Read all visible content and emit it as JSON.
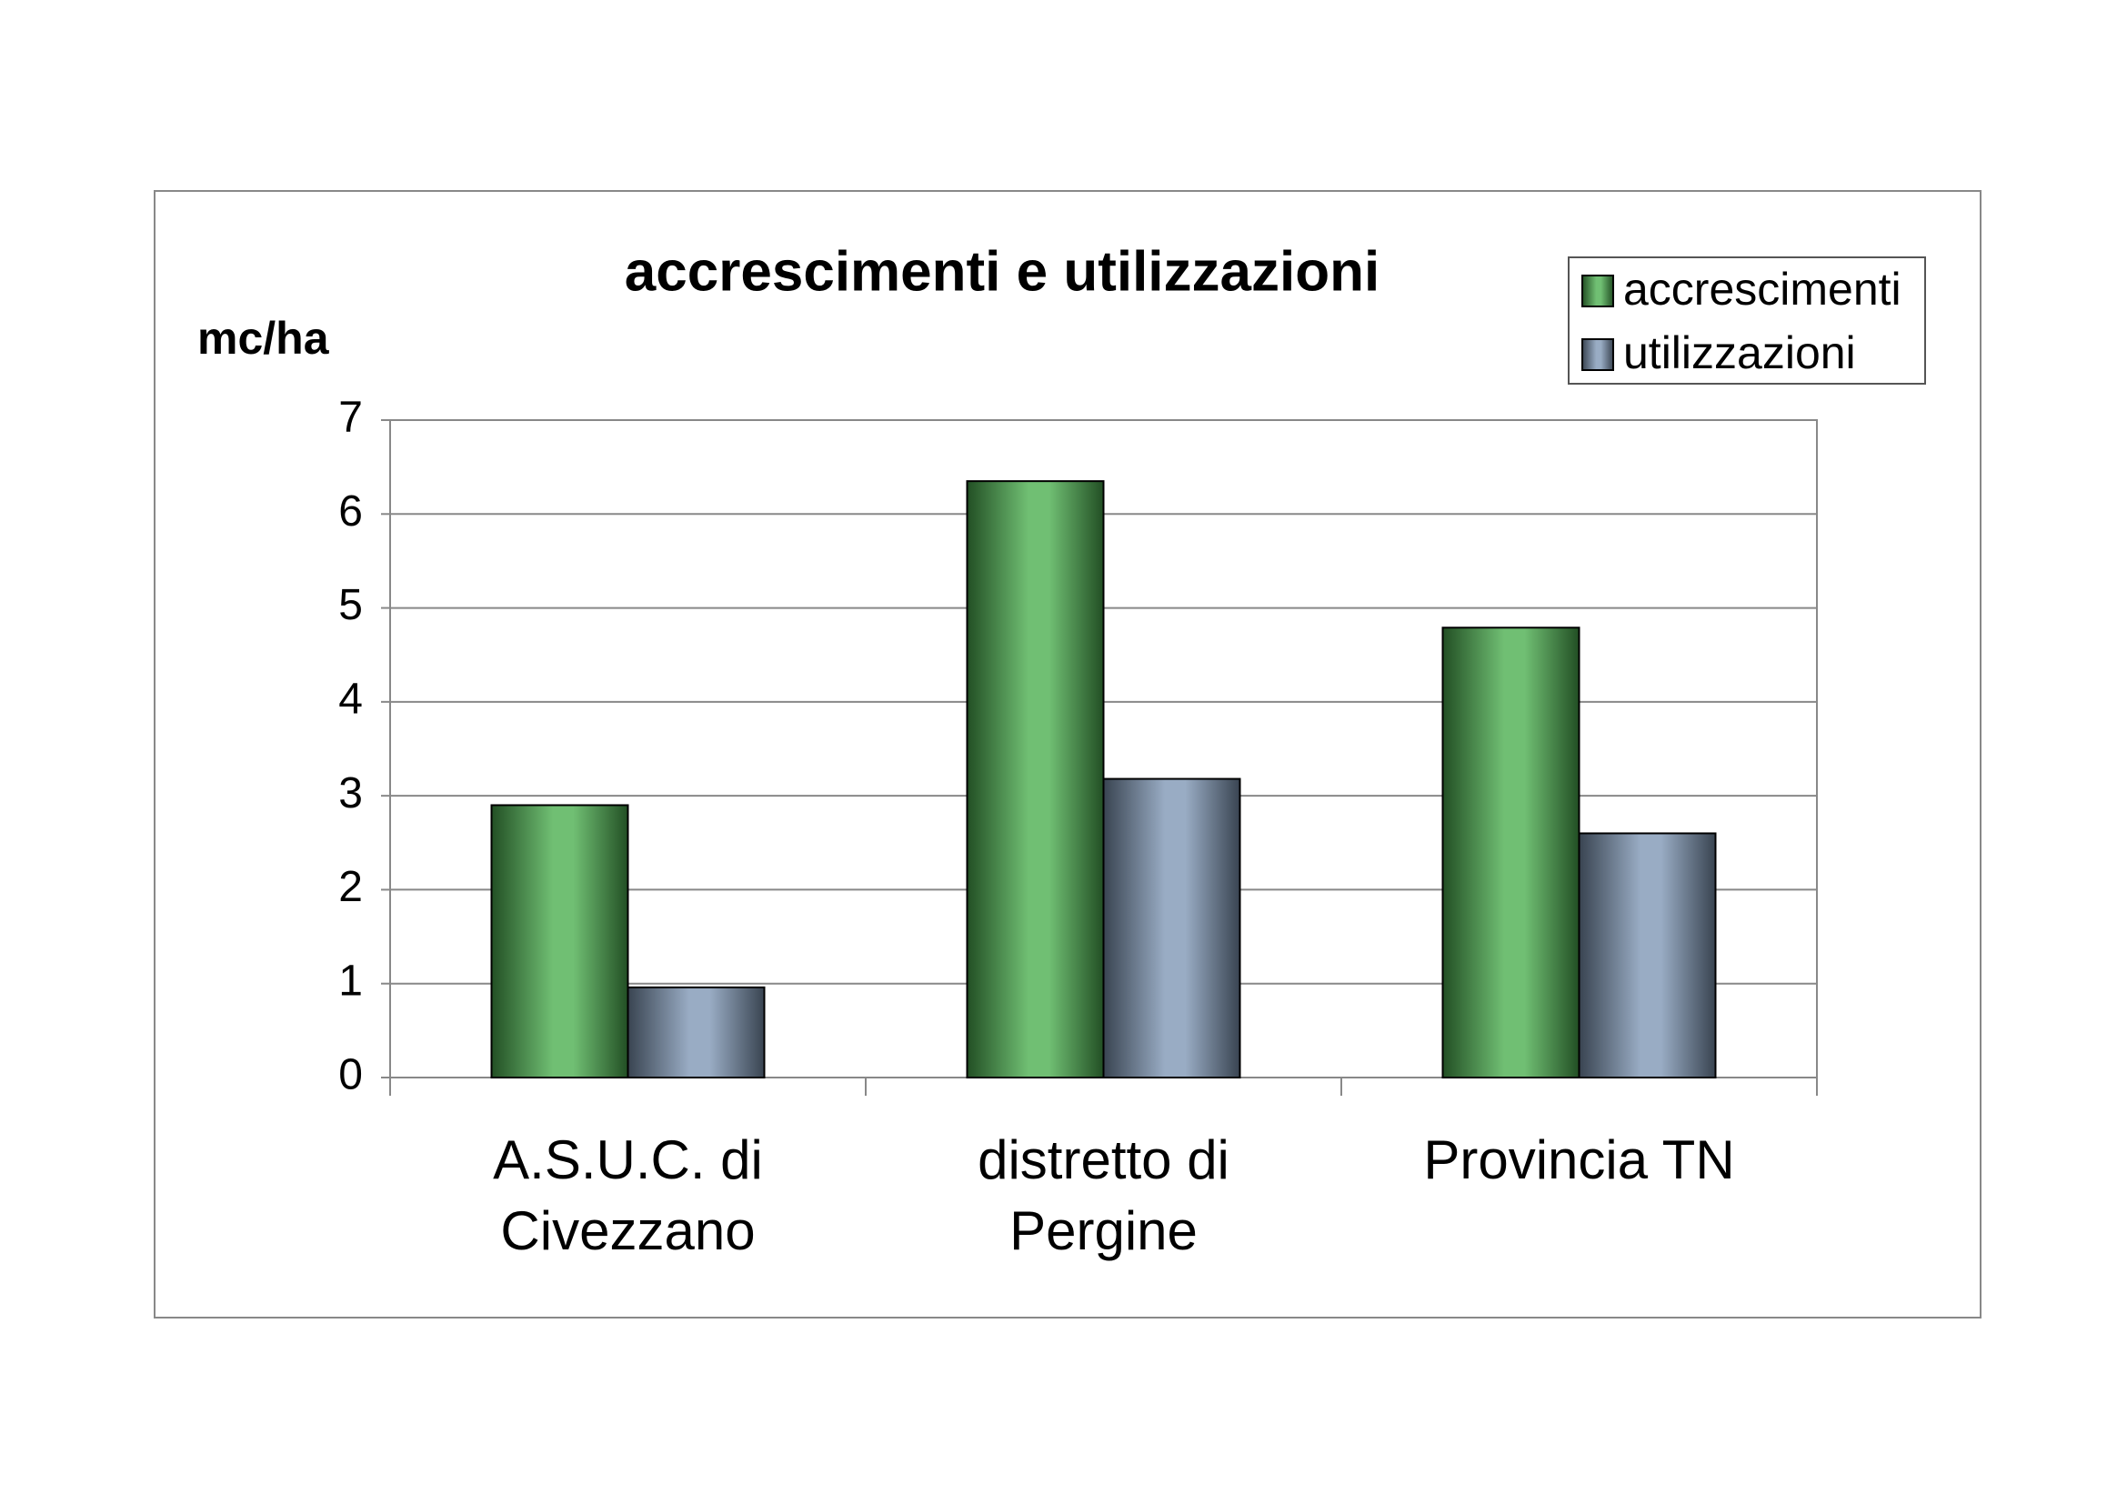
{
  "chart_data": {
    "type": "bar",
    "title": "accrescimenti e utilizzazioni",
    "y_label": "mc/ha",
    "categories": [
      "A.S.U.C. di Civezzano",
      "distretto di Pergine",
      "Provincia TN"
    ],
    "series": [
      {
        "name": "accrescimenti",
        "color": "#4caf50",
        "values": [
          2.9,
          6.35,
          4.79
        ]
      },
      {
        "name": "utilizzazioni",
        "color": "#7f97b5",
        "values": [
          0.96,
          3.18,
          2.6
        ]
      }
    ],
    "ylim": [
      0,
      7
    ],
    "yticks": [
      0,
      1,
      2,
      3,
      4,
      5,
      6,
      7
    ],
    "grid": true,
    "legend": "top-right"
  }
}
